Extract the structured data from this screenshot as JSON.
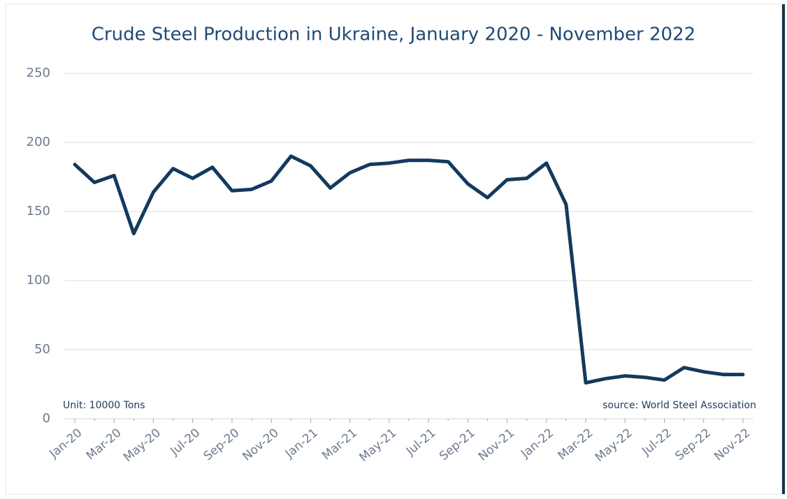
{
  "chart_data": {
    "type": "line",
    "title": "Crude Steel Production in Ukraine, January 2020 - November 2022",
    "categories": [
      "Jan-20",
      null,
      "Mar-20",
      null,
      "May-20",
      null,
      "Jul-20",
      null,
      "Sep-20",
      null,
      "Nov-20",
      null,
      "Jan-21",
      null,
      "Mar-21",
      null,
      "May-21",
      null,
      "Jul-21",
      null,
      "Sep-21",
      null,
      "Nov-21",
      null,
      "Jan-22",
      null,
      "Mar-22",
      null,
      "May-22",
      null,
      "Jul-22",
      null,
      "Sep-22",
      null,
      "Nov-22"
    ],
    "series": [
      {
        "color": "#133a5e",
        "values": [
          184,
          171,
          176,
          134,
          164,
          181,
          174,
          182,
          165,
          166,
          172,
          190,
          183,
          167,
          178,
          184,
          185,
          187,
          187,
          186,
          170,
          160,
          173,
          174,
          185,
          155,
          26,
          29,
          31,
          30,
          28,
          37,
          34,
          32,
          32
        ]
      }
    ],
    "ylim": [
      0,
      250
    ],
    "yticks": [
      0,
      50,
      100,
      150,
      200,
      250
    ],
    "grid": true,
    "annotations": [
      "Unit:  10000 Tons",
      "source: World Steel Association"
    ]
  }
}
